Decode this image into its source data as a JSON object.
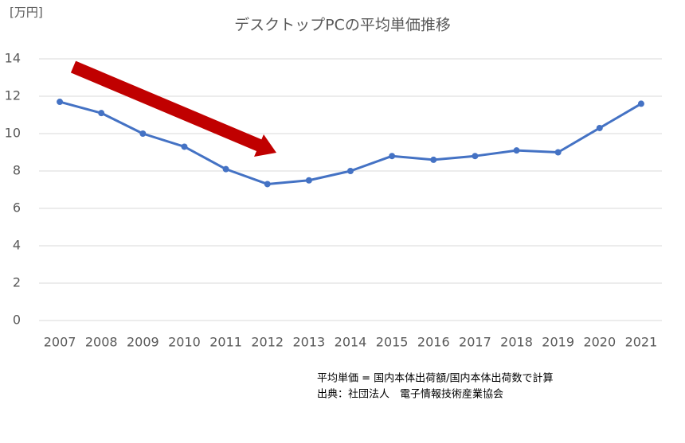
{
  "chart_data": {
    "type": "line",
    "title": "デスクトップPCの平均単価推移",
    "unit_label": "[万円]",
    "categories": [
      "2007",
      "2008",
      "2009",
      "2010",
      "2011",
      "2012",
      "2013",
      "2014",
      "2015",
      "2016",
      "2017",
      "2018",
      "2019",
      "2020",
      "2021"
    ],
    "series": [
      {
        "color": "#4472c4",
        "values": [
          11.7,
          11.1,
          10.0,
          9.3,
          8.1,
          7.3,
          7.5,
          8.0,
          8.8,
          8.6,
          8.8,
          9.1,
          9.0,
          10.3,
          11.6
        ]
      }
    ],
    "ylim": [
      0,
      14
    ],
    "yticks": [
      0,
      2,
      4,
      6,
      8,
      10,
      12,
      14
    ],
    "grid": true,
    "notes": [
      "平均単価 = 国内本体出荷額/国内本体出荷数で計算",
      "出典：社団法人　電子情報技術産業協会"
    ]
  }
}
